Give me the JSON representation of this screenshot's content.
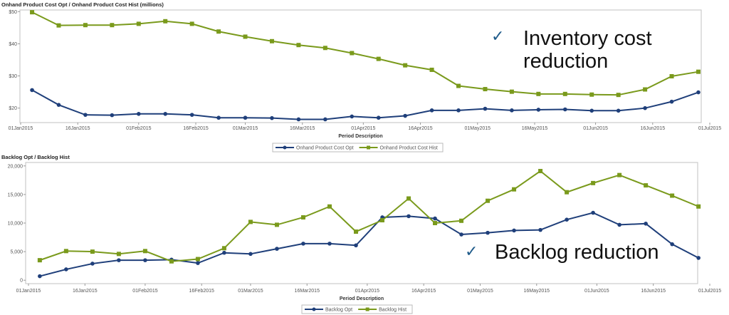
{
  "colors": {
    "opt": "#1f3f7a",
    "hist": "#7a9a1c",
    "frame": "#cccccc"
  },
  "annotations": {
    "check_icon": "✓",
    "inventory_line1": "Inventory cost",
    "inventory_line2": "reduction",
    "backlog": "Backlog reduction"
  },
  "chart_data": [
    {
      "type": "line",
      "title": "Onhand Product Cost Opt / Onhand Product Cost Hist (millions)",
      "xlabel": "Period Description",
      "ylabel": "",
      "x_ticks": [
        "01Jan2015",
        "16Jan2015",
        "01Feb2015",
        "16Feb2015",
        "01Mar2015",
        "16Mar2015",
        "01Apr2015",
        "16Apr2015",
        "01May2015",
        "16May2015",
        "01Jun2015",
        "16Jun2015",
        "01Jul2015"
      ],
      "y_ticks": [
        "$20",
        "$30",
        "$40",
        "$50"
      ],
      "y_tick_values": [
        20,
        30,
        40,
        50
      ],
      "ylim": [
        15.5,
        50.5
      ],
      "grid": false,
      "legend": "bottom",
      "x": [
        "2015-01-04",
        "2015-01-11",
        "2015-01-18",
        "2015-01-25",
        "2015-02-01",
        "2015-02-08",
        "2015-02-15",
        "2015-02-22",
        "2015-03-01",
        "2015-03-08",
        "2015-03-15",
        "2015-03-22",
        "2015-03-29",
        "2015-04-05",
        "2015-04-12",
        "2015-04-19",
        "2015-04-26",
        "2015-05-03",
        "2015-05-10",
        "2015-05-17",
        "2015-05-24",
        "2015-05-31",
        "2015-06-07",
        "2015-06-14",
        "2015-06-21",
        "2015-06-28"
      ],
      "series": [
        {
          "name": "Onhand Product Cost Opt",
          "marker": "circle",
          "values": [
            25.6,
            21.0,
            17.9,
            17.8,
            18.2,
            18.2,
            17.9,
            17.0,
            17.0,
            16.9,
            16.5,
            16.5,
            17.4,
            17.0,
            17.6,
            19.3,
            19.3,
            19.8,
            19.3,
            19.5,
            19.6,
            19.2,
            19.2,
            20.0,
            22.0,
            24.9
          ]
        },
        {
          "name": "Onhand Product Cost Hist",
          "marker": "square",
          "values": [
            49.8,
            45.7,
            45.8,
            45.8,
            46.2,
            47.0,
            46.2,
            43.8,
            42.2,
            40.8,
            39.6,
            38.7,
            37.1,
            35.3,
            33.3,
            31.9,
            26.9,
            25.9,
            25.1,
            24.4,
            24.4,
            24.2,
            24.1,
            25.8,
            29.9,
            31.3
          ]
        }
      ]
    },
    {
      "type": "line",
      "title": "Backlog Opt / Backlog Hist",
      "xlabel": "Period Description",
      "ylabel": "",
      "x_ticks": [
        "01Jan2015",
        "16Jan2015",
        "01Feb2015",
        "16Feb2015",
        "01Mar2015",
        "16Mar2015",
        "01Apr2015",
        "16Apr2015",
        "01May2015",
        "16May2015",
        "01Jun2015",
        "16Jun2015",
        "01Jul2015"
      ],
      "y_ticks": [
        "0",
        "5,000",
        "10,000",
        "15,000",
        "20,000"
      ],
      "y_tick_values": [
        0,
        5000,
        10000,
        15000,
        20000
      ],
      "ylim": [
        -600,
        20600
      ],
      "grid": false,
      "legend": "bottom",
      "x": [
        "2015-01-04",
        "2015-01-11",
        "2015-01-18",
        "2015-01-25",
        "2015-02-01",
        "2015-02-08",
        "2015-02-15",
        "2015-02-22",
        "2015-03-01",
        "2015-03-08",
        "2015-03-15",
        "2015-03-22",
        "2015-03-29",
        "2015-04-05",
        "2015-04-12",
        "2015-04-19",
        "2015-04-26",
        "2015-05-03",
        "2015-05-10",
        "2015-05-17",
        "2015-05-24",
        "2015-05-31",
        "2015-06-07",
        "2015-06-14",
        "2015-06-21",
        "2015-06-28"
      ],
      "series": [
        {
          "name": "Backlog Opt",
          "marker": "circle",
          "values": [
            700,
            1900,
            2900,
            3500,
            3500,
            3600,
            3000,
            4800,
            4600,
            5500,
            6400,
            6400,
            6100,
            11000,
            11200,
            10800,
            8000,
            8300,
            8700,
            8800,
            10600,
            11800,
            9700,
            9900,
            6300,
            3900
          ]
        },
        {
          "name": "Backlog Hist",
          "marker": "square",
          "values": [
            3500,
            5100,
            5000,
            4600,
            5100,
            3300,
            3700,
            5600,
            10200,
            9700,
            11000,
            12900,
            8500,
            10500,
            14300,
            10000,
            10400,
            13900,
            15900,
            19100,
            15400,
            17000,
            18400,
            16600,
            14800,
            12900
          ]
        }
      ]
    }
  ]
}
